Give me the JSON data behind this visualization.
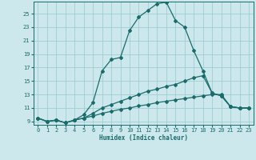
{
  "title": "",
  "xlabel": "Humidex (Indice chaleur)",
  "bg_color": "#cce8ec",
  "grid_color": "#9fcdd4",
  "line_color": "#1a6b6b",
  "xlim": [
    -0.5,
    23.5
  ],
  "ylim": [
    8.5,
    26.8
  ],
  "xticks": [
    0,
    1,
    2,
    3,
    4,
    5,
    6,
    7,
    8,
    9,
    10,
    11,
    12,
    13,
    14,
    15,
    16,
    17,
    18,
    19,
    20,
    21,
    22,
    23
  ],
  "yticks": [
    9,
    11,
    13,
    15,
    17,
    19,
    21,
    23,
    25
  ],
  "line1_x": [
    0,
    1,
    2,
    3,
    4,
    5,
    6,
    7,
    8,
    9,
    10,
    11,
    12,
    13,
    14,
    15,
    16,
    17,
    18,
    19,
    20,
    21,
    22,
    23
  ],
  "line1_y": [
    9.5,
    9.0,
    9.2,
    8.8,
    9.2,
    10.0,
    11.8,
    16.5,
    18.2,
    18.5,
    22.5,
    24.5,
    25.5,
    26.5,
    26.7,
    24.0,
    23.0,
    19.5,
    16.5,
    13.2,
    12.8,
    11.2,
    11.0,
    11.0
  ],
  "line2_x": [
    0,
    1,
    2,
    3,
    4,
    5,
    6,
    7,
    8,
    9,
    10,
    11,
    12,
    13,
    14,
    15,
    16,
    17,
    18,
    19,
    20,
    21,
    22,
    23
  ],
  "line2_y": [
    9.5,
    9.0,
    9.2,
    8.8,
    9.2,
    9.5,
    10.2,
    11.0,
    11.5,
    12.0,
    12.5,
    13.0,
    13.5,
    13.8,
    14.2,
    14.5,
    15.0,
    15.5,
    15.8,
    13.2,
    12.8,
    11.2,
    11.0,
    11.0
  ],
  "line3_x": [
    0,
    1,
    2,
    3,
    4,
    5,
    6,
    7,
    8,
    9,
    10,
    11,
    12,
    13,
    14,
    15,
    16,
    17,
    18,
    19,
    20,
    21,
    22,
    23
  ],
  "line3_y": [
    9.5,
    9.0,
    9.2,
    8.8,
    9.2,
    9.5,
    9.8,
    10.2,
    10.5,
    10.8,
    11.0,
    11.3,
    11.5,
    11.8,
    12.0,
    12.2,
    12.4,
    12.6,
    12.8,
    13.0,
    13.0,
    11.2,
    11.0,
    11.0
  ]
}
